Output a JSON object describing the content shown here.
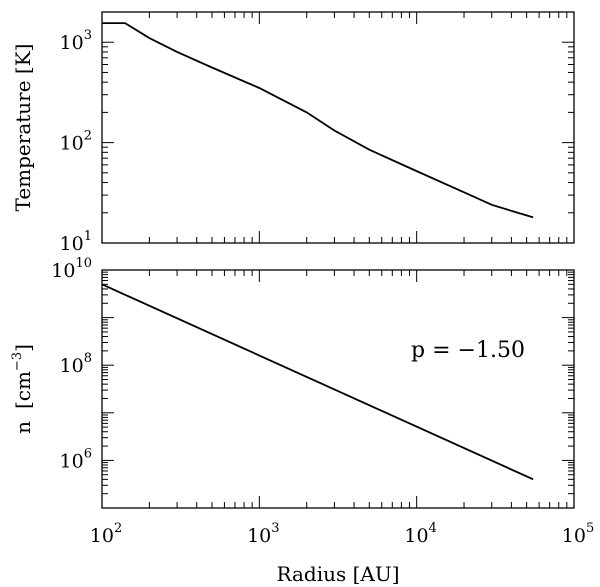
{
  "chart_data": [
    {
      "type": "line",
      "panel": "top",
      "xscale": "log",
      "yscale": "log",
      "xlim": [
        100,
        100000
      ],
      "ylim": [
        10,
        2000
      ],
      "ylabel": "Temperature [K]",
      "xlabel": "",
      "y_ticks": [
        {
          "base": "10",
          "exp": "1",
          "value": 10
        },
        {
          "base": "10",
          "exp": "2",
          "value": 100
        },
        {
          "base": "10",
          "exp": "3",
          "value": 1000
        }
      ],
      "series": [
        {
          "x": [
            100,
            140,
            200,
            300,
            500,
            1000,
            2000,
            3000,
            5000,
            10000,
            20000,
            30000,
            55000
          ],
          "y": [
            1550,
            1550,
            1100,
            800,
            560,
            350,
            200,
            132,
            85,
            52,
            32,
            24,
            18
          ]
        }
      ]
    },
    {
      "type": "line",
      "panel": "bottom",
      "xscale": "log",
      "yscale": "log",
      "xlim": [
        100,
        100000
      ],
      "ylim": [
        100000,
        10000000000
      ],
      "ylabel_main": "n",
      "ylabel_unit": "[cm",
      "ylabel_exp": "−3",
      "ylabel_close": "]",
      "xlabel": "Radius [AU]",
      "annotation": "p = −1.50",
      "y_ticks": [
        {
          "base": "10",
          "exp": "6",
          "value": 1000000
        },
        {
          "base": "10",
          "exp": "8",
          "value": 100000000
        },
        {
          "base": "10",
          "exp": "10",
          "value": 10000000000
        }
      ],
      "x_ticks": [
        {
          "base": "10",
          "exp": "2",
          "value": 100
        },
        {
          "base": "10",
          "exp": "3",
          "value": 1000
        },
        {
          "base": "10",
          "exp": "4",
          "value": 10000
        },
        {
          "base": "10",
          "exp": "5",
          "value": 100000
        }
      ],
      "series": [
        {
          "x": [
            100,
            55000
          ],
          "y": [
            5000000000,
            400000
          ]
        }
      ]
    }
  ]
}
